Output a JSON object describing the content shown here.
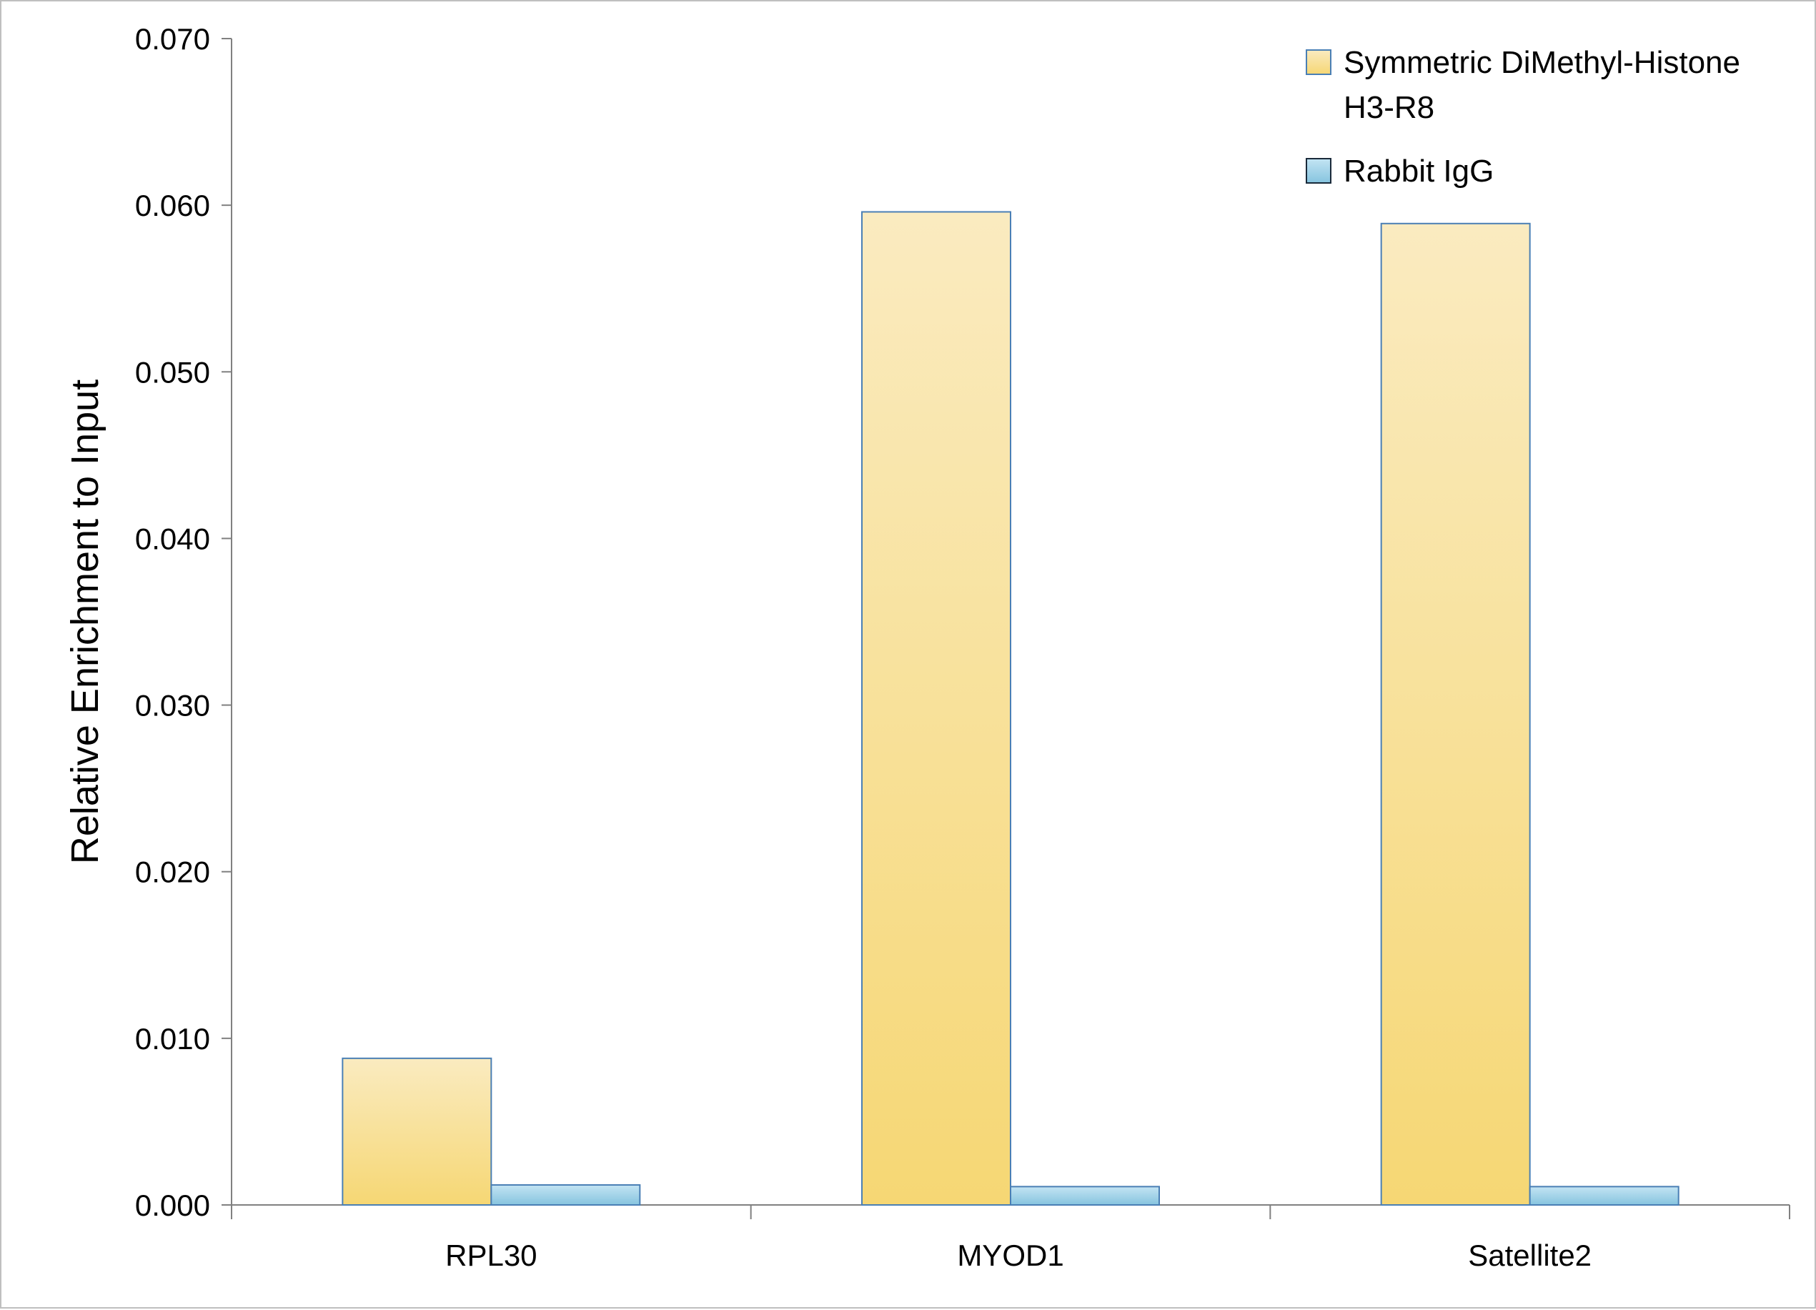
{
  "chart_data": {
    "type": "bar",
    "title": "",
    "xlabel": "",
    "ylabel": "Relative Enrichment to Input",
    "ylim": [
      0,
      0.07
    ],
    "yticks": [
      "0.000",
      "0.010",
      "0.020",
      "0.030",
      "0.040",
      "0.050",
      "0.060",
      "0.070"
    ],
    "categories": [
      "RPL30",
      "MYOD1",
      "Satellite2"
    ],
    "series": [
      {
        "name": "Symmetric DiMethyl-Histone H3-R8",
        "legend_lines": [
          "Symmetric DiMethyl-Histone",
          "H3-R8"
        ],
        "values": [
          0.0088,
          0.0596,
          0.0589
        ],
        "color": "#f7d97a"
      },
      {
        "name": "Rabbit IgG",
        "legend_lines": [
          "Rabbit IgG"
        ],
        "values": [
          0.0012,
          0.0011,
          0.0011
        ],
        "color": "#8ec9e3"
      }
    ],
    "grid": false,
    "legend_position": "top-right"
  }
}
